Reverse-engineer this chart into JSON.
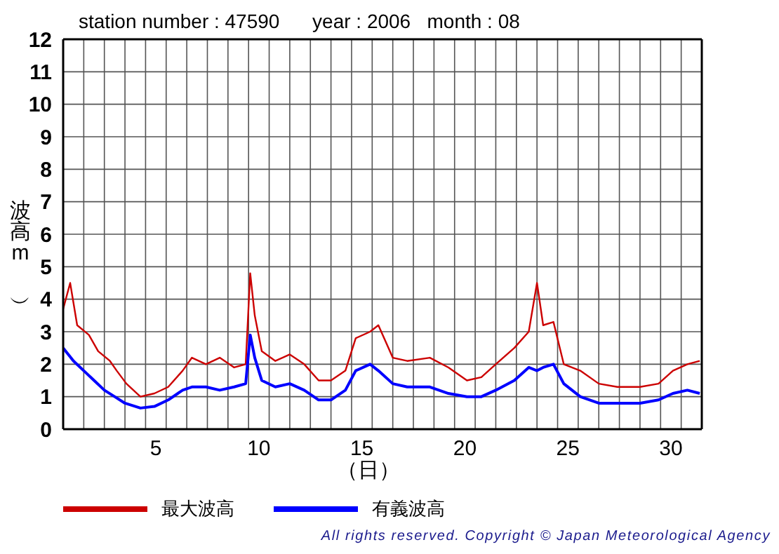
{
  "chart_data": {
    "type": "line",
    "title": "station number : 47590      year : 2006   month : 08",
    "xlabel": "（日）",
    "ylabel": "波高（m）",
    "annotations": [
      "All rights reserved. Copyright © Japan Meteorological Agency"
    ],
    "xlim": [
      1,
      32
    ],
    "xticks": [
      {
        "value": 1,
        "label": null
      },
      {
        "value": 2,
        "label": null
      },
      {
        "value": 3,
        "label": null
      },
      {
        "value": 4,
        "label": null
      },
      {
        "value": 5,
        "label": null
      },
      {
        "value": 5.5,
        "label": "5"
      },
      {
        "value": 6,
        "label": null
      },
      {
        "value": 7,
        "label": null
      },
      {
        "value": 8,
        "label": null
      },
      {
        "value": 9,
        "label": null
      },
      {
        "value": 10,
        "label": null
      },
      {
        "value": 10.5,
        "label": "10"
      },
      {
        "value": 11,
        "label": null
      },
      {
        "value": 12,
        "label": null
      },
      {
        "value": 13,
        "label": null
      },
      {
        "value": 14,
        "label": null
      },
      {
        "value": 15,
        "label": null
      },
      {
        "value": 15.5,
        "label": "15"
      },
      {
        "value": 16,
        "label": null
      },
      {
        "value": 17,
        "label": null
      },
      {
        "value": 18,
        "label": null
      },
      {
        "value": 19,
        "label": null
      },
      {
        "value": 20,
        "label": null
      },
      {
        "value": 20.5,
        "label": "20"
      },
      {
        "value": 21,
        "label": null
      },
      {
        "value": 22,
        "label": null
      },
      {
        "value": 23,
        "label": null
      },
      {
        "value": 24,
        "label": null
      },
      {
        "value": 25,
        "label": null
      },
      {
        "value": 25.5,
        "label": "25"
      },
      {
        "value": 26,
        "label": null
      },
      {
        "value": 27,
        "label": null
      },
      {
        "value": 28,
        "label": null
      },
      {
        "value": 29,
        "label": null
      },
      {
        "value": 30,
        "label": null
      },
      {
        "value": 30.5,
        "label": "30"
      },
      {
        "value": 31,
        "label": null
      },
      {
        "value": 32,
        "label": null
      }
    ],
    "ylim": [
      0,
      12
    ],
    "yticks": [
      0,
      1,
      2,
      3,
      4,
      5,
      6,
      7,
      8,
      9,
      10,
      11,
      12
    ],
    "grid": true,
    "legend": "bottom",
    "series": [
      {
        "name": "最大波高",
        "color": "#cc0000",
        "x": [
          1.0,
          1.34,
          1.68,
          2.25,
          2.7,
          3.27,
          3.6,
          4.07,
          4.75,
          5.43,
          6.1,
          6.8,
          7.25,
          7.93,
          8.6,
          9.3,
          9.86,
          10.08,
          10.3,
          10.64,
          11.3,
          12.0,
          12.7,
          13.4,
          14.0,
          14.7,
          15.2,
          15.9,
          16.3,
          17.0,
          17.7,
          18.8,
          19.7,
          20.6,
          21.3,
          22.0,
          22.9,
          23.6,
          24.0,
          24.3,
          24.8,
          25.3,
          26.1,
          27.0,
          27.9,
          29.0,
          29.9,
          30.6,
          31.3,
          31.9
        ],
        "values": [
          3.7,
          4.5,
          3.2,
          2.9,
          2.4,
          2.1,
          1.8,
          1.4,
          1.0,
          1.1,
          1.3,
          1.8,
          2.2,
          2.0,
          2.2,
          1.9,
          2.0,
          4.8,
          3.5,
          2.4,
          2.1,
          2.3,
          2.0,
          1.5,
          1.5,
          1.8,
          2.8,
          3.0,
          3.2,
          2.2,
          2.1,
          2.2,
          1.9,
          1.5,
          1.6,
          2.0,
          2.5,
          3.0,
          4.5,
          3.2,
          3.3,
          2.0,
          1.8,
          1.4,
          1.3,
          1.3,
          1.4,
          1.8,
          2.0,
          2.1
        ]
      },
      {
        "name": "有義波高",
        "color": "#0000ff",
        "x": [
          1.0,
          1.5,
          2.0,
          2.5,
          3.0,
          3.5,
          4.0,
          4.75,
          5.43,
          6.1,
          6.8,
          7.25,
          7.93,
          8.6,
          9.3,
          9.86,
          10.08,
          10.3,
          10.64,
          11.3,
          12.0,
          12.7,
          13.4,
          14.0,
          14.7,
          15.2,
          15.9,
          16.3,
          17.0,
          17.7,
          18.8,
          19.7,
          20.6,
          21.3,
          22.0,
          22.9,
          23.6,
          24.0,
          24.3,
          24.8,
          25.3,
          26.1,
          27.0,
          27.9,
          29.0,
          29.9,
          30.6,
          31.3,
          31.9
        ],
        "values": [
          2.5,
          2.1,
          1.8,
          1.5,
          1.2,
          1.0,
          0.8,
          0.65,
          0.7,
          0.9,
          1.2,
          1.3,
          1.3,
          1.2,
          1.3,
          1.4,
          2.9,
          2.2,
          1.5,
          1.3,
          1.4,
          1.2,
          0.9,
          0.9,
          1.2,
          1.8,
          2.0,
          1.8,
          1.4,
          1.3,
          1.3,
          1.1,
          1.0,
          1.0,
          1.2,
          1.5,
          1.9,
          1.8,
          1.9,
          2.0,
          1.4,
          1.0,
          0.8,
          0.8,
          0.8,
          0.9,
          1.1,
          1.2,
          1.1
        ]
      }
    ]
  }
}
